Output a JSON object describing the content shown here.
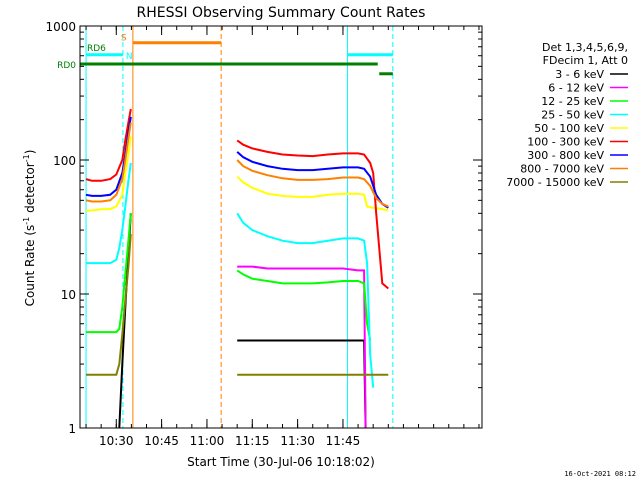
{
  "chart_data": {
    "type": "line",
    "title": "RHESSI Observing Summary Count Rates",
    "xlabel": "Start Time (30-Jul-06 10:18:02)",
    "ylabel": "Count Rate (s⁻¹ detector⁻¹)",
    "ylabel_parts": {
      "before": "Count Rate (s",
      "exp1": "-1",
      "mid": " detector",
      "exp2": "-1",
      "after": ")"
    },
    "yscale": "log",
    "xlim": [
      18,
      151
    ],
    "ylim": [
      1,
      1000
    ],
    "x_tick_minutes": [
      30,
      45,
      60,
      75,
      90,
      105
    ],
    "x_tick_labels": [
      "10:30",
      "10:45",
      "11:00",
      "11:15",
      "11:30",
      "11:45"
    ],
    "y_tick_values": [
      1,
      10,
      100,
      1000
    ],
    "y_tick_labels": [
      "1",
      "10",
      "100",
      "1000"
    ],
    "legend": {
      "header": [
        "Det 1,3,4,5,6,9,",
        "FDecim 1, Att 0"
      ],
      "position": "right"
    },
    "series": [
      {
        "name": "3 - 6 keV",
        "color": "#000000",
        "segments": [
          {
            "x": [
              31,
              32,
              33,
              34,
              34.8
            ],
            "y": [
              1,
              3,
              8,
              20,
              40
            ]
          },
          {
            "x": [
              70,
              75,
              80,
              85,
              90,
              95,
              100,
              105,
              110,
              112,
              112.5
            ],
            "y": [
              4.5,
              4.5,
              4.5,
              4.5,
              4.5,
              4.5,
              4.5,
              4.5,
              4.5,
              4.5,
              1
            ]
          }
        ]
      },
      {
        "name": "6 - 12 keV",
        "color": "#ff00ff",
        "segments": [
          {
            "x": [
              70,
              75,
              80,
              85,
              90,
              95,
              100,
              105,
              110,
              112,
              112.5
            ],
            "y": [
              16,
              16,
              15.5,
              15.5,
              15.5,
              15.5,
              15.5,
              15.5,
              15,
              15,
              1
            ]
          }
        ]
      },
      {
        "name": "12 - 25 keV",
        "color": "#00ff00",
        "segments": [
          {
            "x": [
              20,
              25,
              28,
              30,
              31,
              32,
              33,
              34,
              34.8
            ],
            "y": [
              5.2,
              5.2,
              5.2,
              5.2,
              5.5,
              8,
              14,
              25,
              40
            ]
          },
          {
            "x": [
              70,
              72,
              75,
              80,
              85,
              90,
              95,
              100,
              105,
              110,
              112,
              113,
              114
            ],
            "y": [
              15,
              14,
              13,
              12.5,
              12,
              12,
              12,
              12.2,
              12.5,
              12.5,
              12,
              6,
              4.5
            ]
          }
        ]
      },
      {
        "name": "25 - 50 keV",
        "color": "#00ffff",
        "segments": [
          {
            "x": [
              20,
              25,
              28,
              30,
              31,
              32,
              33,
              34,
              34.8
            ],
            "y": [
              17,
              17,
              17,
              18,
              22,
              30,
              45,
              70,
              95
            ]
          },
          {
            "x": [
              70,
              72,
              75,
              80,
              85,
              90,
              95,
              100,
              105,
              110,
              112,
              113,
              114,
              115
            ],
            "y": [
              40,
              34,
              30,
              27,
              25,
              24,
              24,
              25,
              26,
              26,
              25,
              17,
              3.5,
              2
            ]
          }
        ]
      },
      {
        "name": "50 - 100 keV",
        "color": "#ffff00",
        "segments": [
          {
            "x": [
              20,
              22,
              25,
              28,
              30,
              32,
              33,
              34,
              34.8
            ],
            "y": [
              42,
              42,
              43,
              43,
              45,
              55,
              80,
              110,
              150
            ]
          },
          {
            "x": [
              70,
              72,
              75,
              80,
              85,
              90,
              95,
              100,
              105,
              110,
              112,
              113,
              115,
              118,
              120
            ],
            "y": [
              75,
              68,
              62,
              56,
              54,
              53,
              53,
              55,
              56,
              56,
              55,
              45,
              44,
              43,
              42
            ]
          }
        ]
      },
      {
        "name": "100 - 300 keV",
        "color": "#ff0000",
        "segments": [
          {
            "x": [
              20,
              22,
              25,
              28,
              30,
              32,
              33,
              34,
              34.8
            ],
            "y": [
              72,
              70,
              70,
              72,
              78,
              100,
              140,
              190,
              240
            ]
          },
          {
            "x": [
              70,
              72,
              75,
              80,
              85,
              90,
              95,
              100,
              105,
              110,
              112,
              114,
              115,
              116,
              118,
              120
            ],
            "y": [
              140,
              130,
              122,
              115,
              110,
              108,
              107,
              110,
              112,
              112,
              110,
              95,
              80,
              40,
              12,
              11
            ]
          }
        ]
      },
      {
        "name": "300 - 800 keV",
        "color": "#0000ff",
        "segments": [
          {
            "x": [
              20,
              22,
              25,
              28,
              30,
              32,
              33,
              34,
              34.8
            ],
            "y": [
              55,
              54,
              54,
              55,
              60,
              80,
              110,
              160,
              210
            ]
          },
          {
            "x": [
              70,
              72,
              75,
              80,
              85,
              90,
              95,
              100,
              105,
              110,
              112,
              114,
              116,
              118,
              120
            ],
            "y": [
              115,
              105,
              97,
              90,
              86,
              84,
              84,
              86,
              88,
              88,
              86,
              75,
              55,
              47,
              44
            ]
          }
        ]
      },
      {
        "name": "800 - 7000 keV",
        "color": "#ff8000",
        "segments": [
          {
            "x": [
              20,
              22,
              25,
              28,
              30,
              32,
              33,
              34,
              34.8
            ],
            "y": [
              50,
              49,
              49,
              50,
              55,
              72,
              100,
              145,
              190
            ]
          },
          {
            "x": [
              70,
              72,
              75,
              80,
              85,
              90,
              95,
              100,
              105,
              110,
              112,
              114,
              116,
              118,
              120
            ],
            "y": [
              100,
              90,
              83,
              77,
              73,
              71,
              71,
              72,
              74,
              74,
              72,
              64,
              52,
              47,
              45
            ]
          }
        ]
      },
      {
        "name": "7000 - 15000 keV",
        "color": "#808000",
        "segments": [
          {
            "x": [
              20,
              25,
              28,
              30,
              31,
              32,
              33,
              34,
              34.8
            ],
            "y": [
              2.5,
              2.5,
              2.5,
              2.5,
              3,
              5,
              9,
              16,
              28
            ]
          },
          {
            "x": [
              70,
              75,
              80,
              85,
              90,
              95,
              100,
              105,
              110,
              115,
              120
            ],
            "y": [
              2.5,
              2.5,
              2.5,
              2.5,
              2.5,
              2.5,
              2.5,
              2.5,
              2.5,
              2.5,
              2.5
            ]
          }
        ]
      }
    ],
    "vertical_lines": [
      {
        "x": 20,
        "color": "#00ffff",
        "style": "solid"
      },
      {
        "x": 32.2,
        "color": "#00ffff",
        "style": "dashed"
      },
      {
        "x": 35.5,
        "color": "#ff8000",
        "style": "solid"
      },
      {
        "x": 64.7,
        "color": "#ff8000",
        "style": "dashed"
      },
      {
        "x": 106.5,
        "color": "#00ffff",
        "style": "solid"
      },
      {
        "x": 121.5,
        "color": "#00ffff",
        "style": "dashed"
      }
    ],
    "flag_bars": [
      {
        "label": "S",
        "x": [
          35.5,
          64.7
        ],
        "y": 750,
        "color": "#ff8000"
      },
      {
        "label": "N",
        "x": [
          20,
          32.2
        ],
        "y": 610,
        "color": "#00ffff"
      },
      {
        "label": "",
        "x": [
          106.5,
          121.5
        ],
        "y": 610,
        "color": "#00ffff"
      },
      {
        "label": "RD0",
        "x": [
          18,
          116.5
        ],
        "y": 520,
        "color": "#008000"
      },
      {
        "label": "RD6",
        "x": [
          117,
          121.5
        ],
        "y": 440,
        "color": "#008000"
      }
    ],
    "annotations": [
      "S",
      "N",
      "RD0",
      "RD6"
    ]
  },
  "footer": {
    "timestamp": "16-Oct-2021 08:12"
  }
}
